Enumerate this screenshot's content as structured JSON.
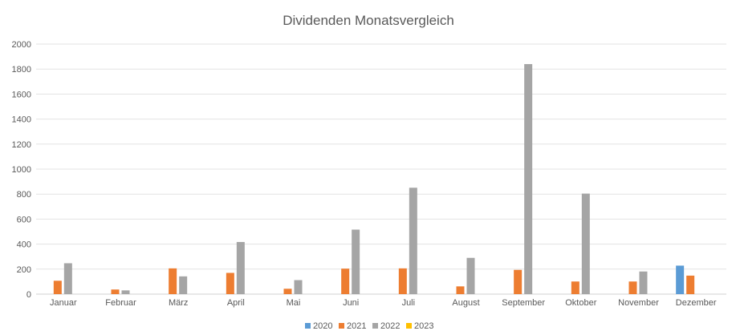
{
  "chart_data": {
    "type": "bar",
    "title": "Dividenden Monatsvergleich",
    "xlabel": "",
    "ylabel": "",
    "ylim": [
      0,
      2000
    ],
    "yticks": [
      0,
      200,
      400,
      600,
      800,
      1000,
      1200,
      1400,
      1600,
      1800,
      2000
    ],
    "grid": true,
    "legend_position": "bottom",
    "categories": [
      "Januar",
      "Februar",
      "März",
      "April",
      "Mai",
      "Juni",
      "Juli",
      "August",
      "September",
      "Oktober",
      "November",
      "Dezember"
    ],
    "series": [
      {
        "name": "2020",
        "color": "#5B9BD5",
        "values": [
          0,
          0,
          0,
          0,
          0,
          0,
          0,
          0,
          0,
          0,
          0,
          228
        ]
      },
      {
        "name": "2021",
        "color": "#ED7D31",
        "values": [
          107,
          37,
          206,
          170,
          43,
          204,
          206,
          62,
          194,
          101,
          101,
          148
        ]
      },
      {
        "name": "2022",
        "color": "#A5A5A5",
        "values": [
          247,
          30,
          142,
          417,
          112,
          516,
          851,
          290,
          1840,
          804,
          181,
          0
        ]
      },
      {
        "name": "2023",
        "color": "#FFC000",
        "values": [
          0,
          0,
          0,
          0,
          0,
          0,
          0,
          0,
          0,
          0,
          0,
          0
        ]
      }
    ]
  }
}
